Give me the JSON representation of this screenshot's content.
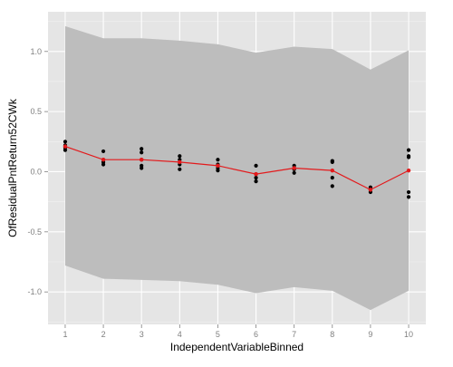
{
  "chart_data": {
    "type": "scatter",
    "title": "",
    "xlabel": "IndependentVariableBinned",
    "ylabel": "OfResidualPntReturn52CWk",
    "xlim": [
      0.55,
      10.45
    ],
    "ylim": [
      -1.27,
      1.33
    ],
    "x_ticks": [
      1,
      2,
      3,
      4,
      5,
      6,
      7,
      8,
      9,
      10
    ],
    "y_ticks": [
      -1.0,
      -0.5,
      0.0,
      0.5,
      1.0
    ],
    "y_tick_labels": [
      "-1.0",
      "-0.5",
      "0.0",
      "0.5",
      "1.0"
    ],
    "grid": true,
    "points": [
      {
        "x": 1,
        "y": 0.25
      },
      {
        "x": 1,
        "y": 0.22
      },
      {
        "x": 1,
        "y": 0.2
      },
      {
        "x": 1,
        "y": 0.18
      },
      {
        "x": 2,
        "y": 0.17
      },
      {
        "x": 2,
        "y": 0.1
      },
      {
        "x": 2,
        "y": 0.08
      },
      {
        "x": 2,
        "y": 0.06
      },
      {
        "x": 3,
        "y": 0.19
      },
      {
        "x": 3,
        "y": 0.16
      },
      {
        "x": 3,
        "y": 0.1
      },
      {
        "x": 3,
        "y": 0.05
      },
      {
        "x": 3,
        "y": 0.03
      },
      {
        "x": 4,
        "y": 0.13
      },
      {
        "x": 4,
        "y": 0.1
      },
      {
        "x": 4,
        "y": 0.06
      },
      {
        "x": 4,
        "y": 0.02
      },
      {
        "x": 5,
        "y": 0.1
      },
      {
        "x": 5,
        "y": 0.06
      },
      {
        "x": 5,
        "y": 0.03
      },
      {
        "x": 5,
        "y": 0.01
      },
      {
        "x": 6,
        "y": 0.05
      },
      {
        "x": 6,
        "y": -0.02
      },
      {
        "x": 6,
        "y": -0.05
      },
      {
        "x": 6,
        "y": -0.08
      },
      {
        "x": 7,
        "y": 0.05
      },
      {
        "x": 7,
        "y": 0.03
      },
      {
        "x": 7,
        "y": 0.02
      },
      {
        "x": 7,
        "y": -0.01
      },
      {
        "x": 8,
        "y": 0.09
      },
      {
        "x": 8,
        "y": 0.08
      },
      {
        "x": 8,
        "y": -0.05
      },
      {
        "x": 8,
        "y": -0.12
      },
      {
        "x": 9,
        "y": -0.13
      },
      {
        "x": 9,
        "y": -0.15
      },
      {
        "x": 9,
        "y": -0.17
      },
      {
        "x": 10,
        "y": 0.18
      },
      {
        "x": 10,
        "y": 0.13
      },
      {
        "x": 10,
        "y": 0.12
      },
      {
        "x": 10,
        "y": -0.17
      },
      {
        "x": 10,
        "y": -0.21
      }
    ],
    "mean_line": {
      "x": [
        1,
        2,
        3,
        4,
        5,
        6,
        7,
        8,
        9,
        10
      ],
      "y": [
        0.21,
        0.1,
        0.1,
        0.08,
        0.05,
        -0.02,
        0.03,
        0.01,
        -0.15,
        0.01
      ]
    },
    "ribbon": {
      "x": [
        1,
        2,
        3,
        4,
        5,
        6,
        7,
        8,
        9,
        10
      ],
      "upper": [
        1.21,
        1.11,
        1.11,
        1.09,
        1.06,
        0.99,
        1.04,
        1.02,
        0.85,
        1.01
      ],
      "lower": [
        -0.78,
        -0.89,
        -0.9,
        -0.91,
        -0.94,
        -1.01,
        -0.96,
        -0.99,
        -1.15,
        -0.99
      ]
    },
    "colors": {
      "panel_background": "#e5e5e5",
      "grid_major": "#ffffff",
      "grid_minor": "#f2f2f2",
      "ribbon": "#bdbdbd",
      "points": "#000000",
      "mean_line": "#e31a1c",
      "mean_points": "#e31a1c",
      "tick_label": "#7f7f7f",
      "axis_title": "#000000"
    }
  }
}
